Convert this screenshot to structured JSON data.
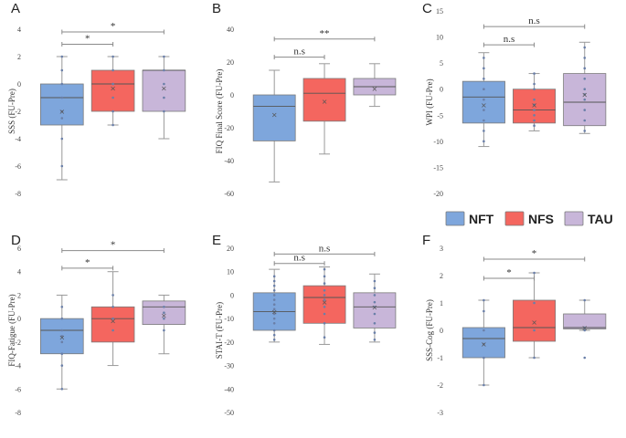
{
  "colors": {
    "NFT": "#7ea6dc",
    "NFS": "#f4665f",
    "TAU": "#c8b6d9",
    "whisker": "#999999",
    "outline": "#7a7a7a",
    "bracket": "#8a8a8a",
    "dot": "#6a7fa8"
  },
  "legend": [
    {
      "name": "NFT",
      "color": "#7ea6dc"
    },
    {
      "name": "NFS",
      "color": "#f4665f"
    },
    {
      "name": "TAU",
      "color": "#c8b6d9"
    }
  ],
  "chart_data": [
    {
      "type": "box",
      "panel": "A",
      "ylabel": "SSS (FU-Pre)",
      "ylim": [
        -8,
        4
      ],
      "yticks": [
        -8,
        -6,
        -4,
        -2,
        0,
        2,
        4
      ],
      "groups": [
        {
          "name": "NFT",
          "min": -7,
          "q1": -3,
          "median": -1,
          "q3": 0,
          "max": 2,
          "mean": -2,
          "points": [
            -6,
            -4,
            -2.5,
            -2,
            -1,
            0,
            1,
            2
          ]
        },
        {
          "name": "NFS",
          "min": -3,
          "q1": -2,
          "median": 0,
          "q3": 1,
          "max": 2,
          "mean": -0.3,
          "points": [
            -3,
            -2,
            -1,
            0,
            0,
            1,
            2
          ]
        },
        {
          "name": "TAU",
          "min": -4,
          "q1": -2,
          "median": 1,
          "q3": 1,
          "max": 2,
          "mean": -0.3,
          "points": [
            -2,
            -1,
            0,
            1,
            2
          ]
        }
      ],
      "comparisons": [
        {
          "from": 0,
          "to": 1,
          "label": "*",
          "y": 2.9
        },
        {
          "from": 0,
          "to": 2,
          "label": "*",
          "y": 3.8
        }
      ]
    },
    {
      "type": "box",
      "panel": "B",
      "ylabel": "FIQ Final Score (FU-Pre)",
      "ylim": [
        -60,
        40
      ],
      "yticks": [
        -60,
        -40,
        -20,
        0,
        20,
        40
      ],
      "groups": [
        {
          "name": "NFT",
          "min": -53,
          "q1": -28,
          "median": -7,
          "q3": 0,
          "max": 15,
          "mean": -12,
          "points": []
        },
        {
          "name": "NFS",
          "min": -36,
          "q1": -16,
          "median": 1,
          "q3": 10,
          "max": 19,
          "mean": -4,
          "points": []
        },
        {
          "name": "TAU",
          "min": -7,
          "q1": 0,
          "median": 5,
          "q3": 10,
          "max": 19,
          "mean": 4,
          "points": []
        }
      ],
      "comparisons": [
        {
          "from": 0,
          "to": 1,
          "label": "n.s",
          "y": 23
        },
        {
          "from": 0,
          "to": 2,
          "label": "**",
          "y": 34
        }
      ]
    },
    {
      "type": "box",
      "panel": "C",
      "ylabel": "WPI (FU-Pre)",
      "ylim": [
        -20,
        15
      ],
      "yticks": [
        -20,
        -15,
        -10,
        -5,
        0,
        5,
        10,
        15
      ],
      "groups": [
        {
          "name": "NFT",
          "min": -11,
          "q1": -6.5,
          "median": -1.5,
          "q3": 1.5,
          "max": 7,
          "mean": -3,
          "points": [
            -10,
            -8,
            -6,
            -4,
            -2,
            0,
            2,
            4,
            6
          ]
        },
        {
          "name": "NFS",
          "min": -8,
          "q1": -6.5,
          "median": -4,
          "q3": 0,
          "max": 3,
          "mean": -3,
          "points": [
            -7,
            -6,
            -5,
            -4,
            -3,
            -2,
            0,
            1,
            3
          ]
        },
        {
          "name": "TAU",
          "min": -8.5,
          "q1": -7,
          "median": -2.5,
          "q3": 3,
          "max": 9,
          "mean": -1,
          "points": [
            -8,
            -6,
            -4,
            -2,
            -1,
            0,
            2,
            4,
            6,
            8
          ]
        }
      ],
      "comparisons": [
        {
          "from": 0,
          "to": 1,
          "label": "n.s",
          "y": 8.5
        },
        {
          "from": 0,
          "to": 2,
          "label": "n.s",
          "y": 12
        }
      ]
    },
    {
      "type": "box",
      "panel": "D",
      "ylabel": "FIQ-Fatigue (FU-Pre)",
      "ylim": [
        -8,
        6
      ],
      "yticks": [
        -8,
        -6,
        -4,
        -2,
        0,
        2,
        4,
        6
      ],
      "groups": [
        {
          "name": "NFT",
          "min": -6,
          "q1": -3,
          "median": -1,
          "q3": 0,
          "max": 2,
          "mean": -1.6,
          "points": [
            -6,
            -4,
            -3,
            -2,
            -1.5,
            -1,
            0,
            1
          ]
        },
        {
          "name": "NFS",
          "min": -4,
          "q1": -2,
          "median": 0,
          "q3": 1,
          "max": 4,
          "mean": -0.2,
          "points": [
            -1,
            0,
            1,
            2
          ]
        },
        {
          "name": "TAU",
          "min": -3,
          "q1": -0.5,
          "median": 1,
          "q3": 1.5,
          "max": 2,
          "mean": 0.3,
          "points": [
            -1,
            0,
            0.5,
            1
          ]
        }
      ],
      "comparisons": [
        {
          "from": 0,
          "to": 1,
          "label": "*",
          "y": 4.3
        },
        {
          "from": 0,
          "to": 2,
          "label": "*",
          "y": 5.8
        }
      ]
    },
    {
      "type": "box",
      "panel": "E",
      "ylabel": "STAI-T (FU-Pre)",
      "ylim": [
        -50,
        20
      ],
      "yticks": [
        -50,
        -40,
        -30,
        -20,
        -10,
        0,
        10,
        20
      ],
      "groups": [
        {
          "name": "NFT",
          "min": -20,
          "q1": -15,
          "median": -7,
          "q3": 1,
          "max": 11,
          "mean": -7,
          "points": [
            -19,
            -17,
            -15,
            -12,
            -10,
            -8,
            -6,
            -4,
            -2,
            0,
            2,
            4,
            6,
            8
          ]
        },
        {
          "name": "NFS",
          "min": -21,
          "q1": -12,
          "median": -1,
          "q3": 4,
          "max": 12,
          "mean": -3,
          "points": [
            -18,
            -12,
            -8,
            -5,
            -2,
            0,
            2,
            5,
            8,
            11
          ]
        },
        {
          "name": "TAU",
          "min": -20,
          "q1": -14,
          "median": -5,
          "q3": 1,
          "max": 9,
          "mean": -5,
          "points": [
            -19,
            -16,
            -12,
            -8,
            -5,
            -3,
            0,
            3,
            6
          ]
        }
      ],
      "comparisons": [
        {
          "from": 0,
          "to": 1,
          "label": "n.s",
          "y": 13.5
        },
        {
          "from": 0,
          "to": 2,
          "label": "n.s",
          "y": 17.5
        }
      ]
    },
    {
      "type": "box",
      "panel": "F",
      "ylabel": "SSS-Cog (FU-Pre)",
      "ylim": [
        -3,
        3
      ],
      "yticks": [
        -3,
        -2,
        -1,
        0,
        1,
        2,
        3
      ],
      "groups": [
        {
          "name": "NFT",
          "min": -2,
          "q1": -1,
          "median": -0.3,
          "q3": 0.1,
          "max": 1.1,
          "mean": -0.5,
          "points": [
            -2,
            -1,
            -0.5,
            0,
            0.7,
            1.1
          ]
        },
        {
          "name": "NFS",
          "min": -1,
          "q1": -0.4,
          "median": 0.1,
          "q3": 1.1,
          "max": 2.1,
          "mean": 0.3,
          "points": [
            -1,
            0,
            1,
            2.1
          ]
        },
        {
          "name": "TAU",
          "min": 0,
          "q1": 0.05,
          "median": 0.1,
          "q3": 0.6,
          "max": 1.1,
          "mean": 0.1,
          "points": [
            -1,
            0,
            0.1,
            1.1
          ]
        }
      ],
      "comparisons": [
        {
          "from": 0,
          "to": 1,
          "label": "*",
          "y": 1.9
        },
        {
          "from": 0,
          "to": 2,
          "label": "*",
          "y": 2.6
        }
      ]
    }
  ]
}
